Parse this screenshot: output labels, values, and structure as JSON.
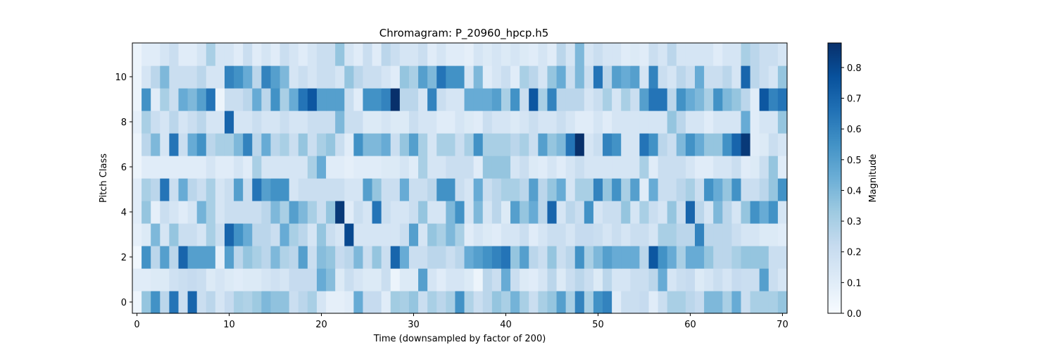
{
  "chart_data": {
    "type": "heatmap",
    "title": "Chromagram: P_20960_hpcp.h5",
    "xlabel": "Time (downsampled by factor of 200)",
    "ylabel": "Pitch Class",
    "colorbar_label": "Magnitude",
    "colormap": "Blues",
    "colors": {
      "low": "#f7fbff",
      "high": "#08306b"
    },
    "xlim": [
      -0.5,
      70.5
    ],
    "ylim": [
      -0.5,
      11.5
    ],
    "vmin": 0,
    "vmax": 0.88,
    "x_ticks": [
      0,
      10,
      20,
      30,
      40,
      50,
      60,
      70
    ],
    "y_ticks": [
      0,
      2,
      4,
      6,
      8,
      10
    ],
    "colorbar_ticks": [
      0.0,
      0.1,
      0.2,
      0.3,
      0.4,
      0.5,
      0.6,
      0.7,
      0.8
    ],
    "x_count": 71,
    "y_count": 12,
    "values": [
      [
        0.04,
        0.35,
        0.55,
        0.25,
        0.65,
        0.2,
        0.7,
        0.2,
        0.25,
        0.15,
        0.22,
        0.3,
        0.28,
        0.33,
        0.4,
        0.36,
        0.36,
        0.2,
        0.25,
        0.3,
        0.15,
        0.08,
        0.08,
        0.1,
        0.45,
        0.22,
        0.22,
        0.1,
        0.32,
        0.3,
        0.35,
        0.2,
        0.3,
        0.25,
        0.3,
        0.55,
        0.28,
        0.2,
        0.25,
        0.35,
        0.3,
        0.42,
        0.3,
        0.2,
        0.3,
        0.35,
        0.5,
        0.3,
        0.6,
        0.3,
        0.55,
        0.6,
        0.1,
        0.2,
        0.2,
        0.22,
        0.1,
        0.2,
        0.3,
        0.3,
        0.25,
        0.22,
        0.4,
        0.4,
        0.3,
        0.45,
        0.2,
        0.3,
        0.3,
        0.3,
        0.35
      ],
      [
        0.1,
        0.1,
        0.12,
        0.12,
        0.18,
        0.2,
        0.22,
        0.2,
        0.12,
        0.15,
        0.12,
        0.1,
        0.12,
        0.12,
        0.15,
        0.18,
        0.15,
        0.22,
        0.22,
        0.22,
        0.45,
        0.38,
        0.12,
        0.2,
        0.15,
        0.12,
        0.12,
        0.2,
        0.05,
        0.12,
        0.12,
        0.5,
        0.15,
        0.1,
        0.15,
        0.15,
        0.12,
        0.05,
        0.25,
        0.2,
        0.45,
        0.2,
        0.12,
        0.1,
        0.15,
        0.25,
        0.12,
        0.2,
        0.25,
        0.2,
        0.12,
        0.25,
        0.15,
        0.15,
        0.2,
        0.2,
        0.25,
        0.45,
        0.15,
        0.2,
        0.22,
        0.12,
        0.15,
        0.2,
        0.15,
        0.22,
        0.2,
        0.2,
        0.5,
        0.2,
        0.15
      ],
      [
        0.03,
        0.55,
        0.25,
        0.5,
        0.25,
        0.7,
        0.5,
        0.5,
        0.5,
        0.08,
        0.5,
        0.25,
        0.35,
        0.3,
        0.25,
        0.4,
        0.28,
        0.25,
        0.5,
        0.2,
        0.38,
        0.35,
        0.22,
        0.25,
        0.4,
        0.2,
        0.35,
        0.2,
        0.7,
        0.45,
        0.2,
        0.2,
        0.25,
        0.25,
        0.2,
        0.25,
        0.45,
        0.5,
        0.55,
        0.6,
        0.65,
        0.35,
        0.5,
        0.25,
        0.2,
        0.35,
        0.2,
        0.25,
        0.55,
        0.3,
        0.4,
        0.5,
        0.45,
        0.45,
        0.45,
        0.25,
        0.75,
        0.55,
        0.45,
        0.3,
        0.45,
        0.45,
        0.35,
        0.25,
        0.25,
        0.3,
        0.35,
        0.35,
        0.35,
        0.2,
        0.2
      ],
      [
        0.08,
        0.12,
        0.4,
        0.15,
        0.35,
        0.2,
        0.2,
        0.15,
        0.3,
        0.2,
        0.7,
        0.55,
        0.45,
        0.25,
        0.25,
        0.2,
        0.45,
        0.3,
        0.25,
        0.15,
        0.35,
        0.2,
        0.15,
        0.8,
        0.15,
        0.15,
        0.15,
        0.15,
        0.15,
        0.2,
        0.5,
        0.15,
        0.35,
        0.3,
        0.4,
        0.3,
        0.1,
        0.15,
        0.12,
        0.1,
        0.15,
        0.15,
        0.2,
        0.1,
        0.15,
        0.2,
        0.2,
        0.15,
        0.22,
        0.22,
        0.2,
        0.15,
        0.2,
        0.15,
        0.2,
        0.2,
        0.15,
        0.3,
        0.3,
        0.25,
        0.25,
        0.6,
        0.25,
        0.25,
        0.25,
        0.2,
        0.15,
        0.15,
        0.12,
        0.12,
        0.1
      ],
      [
        0.1,
        0.35,
        0.08,
        0.2,
        0.15,
        0.1,
        0.15,
        0.42,
        0.3,
        0.15,
        0.2,
        0.2,
        0.2,
        0.2,
        0.25,
        0.4,
        0.3,
        0.5,
        0.4,
        0.3,
        0.2,
        0.35,
        0.85,
        0.1,
        0.2,
        0.15,
        0.65,
        0.2,
        0.15,
        0.15,
        0.2,
        0.35,
        0.15,
        0.15,
        0.4,
        0.55,
        0.15,
        0.4,
        0.15,
        0.25,
        0.12,
        0.5,
        0.35,
        0.45,
        0.25,
        0.7,
        0.15,
        0.25,
        0.2,
        0.55,
        0.15,
        0.2,
        0.2,
        0.35,
        0.15,
        0.3,
        0.2,
        0.15,
        0.35,
        0.2,
        0.7,
        0.25,
        0.15,
        0.4,
        0.25,
        0.15,
        0.35,
        0.55,
        0.45,
        0.55,
        0.15
      ],
      [
        0.1,
        0.3,
        0.25,
        0.65,
        0.2,
        0.45,
        0.25,
        0.2,
        0.3,
        0.15,
        0.2,
        0.5,
        0.2,
        0.65,
        0.5,
        0.55,
        0.55,
        0.15,
        0.2,
        0.2,
        0.2,
        0.2,
        0.2,
        0.15,
        0.15,
        0.5,
        0.35,
        0.2,
        0.2,
        0.45,
        0.2,
        0.2,
        0.25,
        0.55,
        0.55,
        0.2,
        0.15,
        0.45,
        0.2,
        0.25,
        0.3,
        0.3,
        0.25,
        0.5,
        0.25,
        0.35,
        0.45,
        0.15,
        0.3,
        0.3,
        0.6,
        0.35,
        0.55,
        0.3,
        0.5,
        0.1,
        0.45,
        0.2,
        0.2,
        0.25,
        0.3,
        0.2,
        0.55,
        0.45,
        0.35,
        0.55,
        0.2,
        0.2,
        0.25,
        0.35,
        0.55
      ],
      [
        0.05,
        0.1,
        0.1,
        0.1,
        0.1,
        0.1,
        0.1,
        0.1,
        0.15,
        0.1,
        0.1,
        0.15,
        0.1,
        0.3,
        0.15,
        0.15,
        0.15,
        0.15,
        0.15,
        0.3,
        0.45,
        0.1,
        0.1,
        0.08,
        0.1,
        0.1,
        0.1,
        0.12,
        0.12,
        0.15,
        0.1,
        0.3,
        0.15,
        0.15,
        0.2,
        0.2,
        0.2,
        0.1,
        0.35,
        0.35,
        0.35,
        0.15,
        0.2,
        0.12,
        0.1,
        0.15,
        0.1,
        0.15,
        0.2,
        0.15,
        0.15,
        0.15,
        0.15,
        0.15,
        0.15,
        0.3,
        0.1,
        0.2,
        0.2,
        0.2,
        0.15,
        0.1,
        0.1,
        0.15,
        0.15,
        0.2,
        0.1,
        0.12,
        0.2,
        0.35,
        0.1
      ],
      [
        0.05,
        0.25,
        0.4,
        0.15,
        0.65,
        0.2,
        0.45,
        0.55,
        0.25,
        0.3,
        0.3,
        0.4,
        0.6,
        0.25,
        0.45,
        0.25,
        0.3,
        0.2,
        0.35,
        0.2,
        0.3,
        0.35,
        0.2,
        0.1,
        0.55,
        0.4,
        0.4,
        0.45,
        0.2,
        0.35,
        0.5,
        0.3,
        0.15,
        0.3,
        0.3,
        0.2,
        0.3,
        0.55,
        0.3,
        0.3,
        0.3,
        0.25,
        0.3,
        0.2,
        0.5,
        0.35,
        0.4,
        0.65,
        0.88,
        0.15,
        0.2,
        0.6,
        0.55,
        0.15,
        0.15,
        0.65,
        0.55,
        0.25,
        0.2,
        0.4,
        0.55,
        0.45,
        0.35,
        0.35,
        0.55,
        0.7,
        0.85,
        0.1,
        0.12,
        0.2,
        0.15
      ],
      [
        0.08,
        0.3,
        0.2,
        0.15,
        0.25,
        0.15,
        0.2,
        0.25,
        0.15,
        0.15,
        0.7,
        0.15,
        0.15,
        0.2,
        0.15,
        0.15,
        0.2,
        0.15,
        0.15,
        0.2,
        0.2,
        0.2,
        0.4,
        0.2,
        0.2,
        0.12,
        0.12,
        0.15,
        0.12,
        0.12,
        0.2,
        0.15,
        0.15,
        0.1,
        0.1,
        0.15,
        0.12,
        0.1,
        0.2,
        0.15,
        0.15,
        0.12,
        0.15,
        0.2,
        0.15,
        0.15,
        0.2,
        0.15,
        0.1,
        0.1,
        0.15,
        0.1,
        0.15,
        0.15,
        0.15,
        0.15,
        0.15,
        0.15,
        0.35,
        0.25,
        0.15,
        0.15,
        0.1,
        0.15,
        0.15,
        0.15,
        0.45,
        0.1,
        0.15,
        0.15,
        0.35
      ],
      [
        0.05,
        0.55,
        0.1,
        0.3,
        0.2,
        0.45,
        0.4,
        0.5,
        0.65,
        0.05,
        0.2,
        0.2,
        0.25,
        0.45,
        0.25,
        0.55,
        0.3,
        0.45,
        0.65,
        0.75,
        0.5,
        0.5,
        0.5,
        0.2,
        0.1,
        0.55,
        0.55,
        0.6,
        0.88,
        0.25,
        0.25,
        0.15,
        0.6,
        0.2,
        0.15,
        0.15,
        0.45,
        0.45,
        0.45,
        0.5,
        0.3,
        0.55,
        0.2,
        0.75,
        0.3,
        0.6,
        0.25,
        0.25,
        0.25,
        0.15,
        0.2,
        0.3,
        0.15,
        0.3,
        0.2,
        0.5,
        0.65,
        0.65,
        0.25,
        0.55,
        0.45,
        0.4,
        0.3,
        0.55,
        0.4,
        0.35,
        0.25,
        0.1,
        0.75,
        0.6,
        0.65
      ],
      [
        0.05,
        0.15,
        0.25,
        0.4,
        0.2,
        0.2,
        0.2,
        0.25,
        0.15,
        0.15,
        0.6,
        0.55,
        0.45,
        0.25,
        0.6,
        0.5,
        0.4,
        0.15,
        0.2,
        0.15,
        0.2,
        0.2,
        0.15,
        0.35,
        0.25,
        0.2,
        0.2,
        0.15,
        0.1,
        0.35,
        0.3,
        0.5,
        0.4,
        0.65,
        0.55,
        0.55,
        0.15,
        0.4,
        0.1,
        0.15,
        0.2,
        0.1,
        0.3,
        0.25,
        0.15,
        0.35,
        0.45,
        0.2,
        0.4,
        0.2,
        0.65,
        0.25,
        0.5,
        0.45,
        0.5,
        0.15,
        0.6,
        0.2,
        0.15,
        0.25,
        0.2,
        0.45,
        0.2,
        0.2,
        0.25,
        0.15,
        0.7,
        0.25,
        0.2,
        0.15,
        0.35
      ],
      [
        0.05,
        0.1,
        0.1,
        0.15,
        0.2,
        0.1,
        0.1,
        0.15,
        0.3,
        0.15,
        0.15,
        0.1,
        0.2,
        0.1,
        0.15,
        0.1,
        0.2,
        0.15,
        0.1,
        0.15,
        0.2,
        0.2,
        0.35,
        0.15,
        0.1,
        0.2,
        0.1,
        0.25,
        0.2,
        0.15,
        0.15,
        0.2,
        0.1,
        0.15,
        0.1,
        0.1,
        0.08,
        0.15,
        0.12,
        0.15,
        0.12,
        0.15,
        0.12,
        0.1,
        0.15,
        0.1,
        0.25,
        0.15,
        0.4,
        0.15,
        0.2,
        0.15,
        0.15,
        0.1,
        0.12,
        0.1,
        0.2,
        0.15,
        0.25,
        0.15,
        0.15,
        0.15,
        0.15,
        0.1,
        0.15,
        0.15,
        0.3,
        0.25,
        0.2,
        0.2,
        0.15
      ]
    ]
  }
}
